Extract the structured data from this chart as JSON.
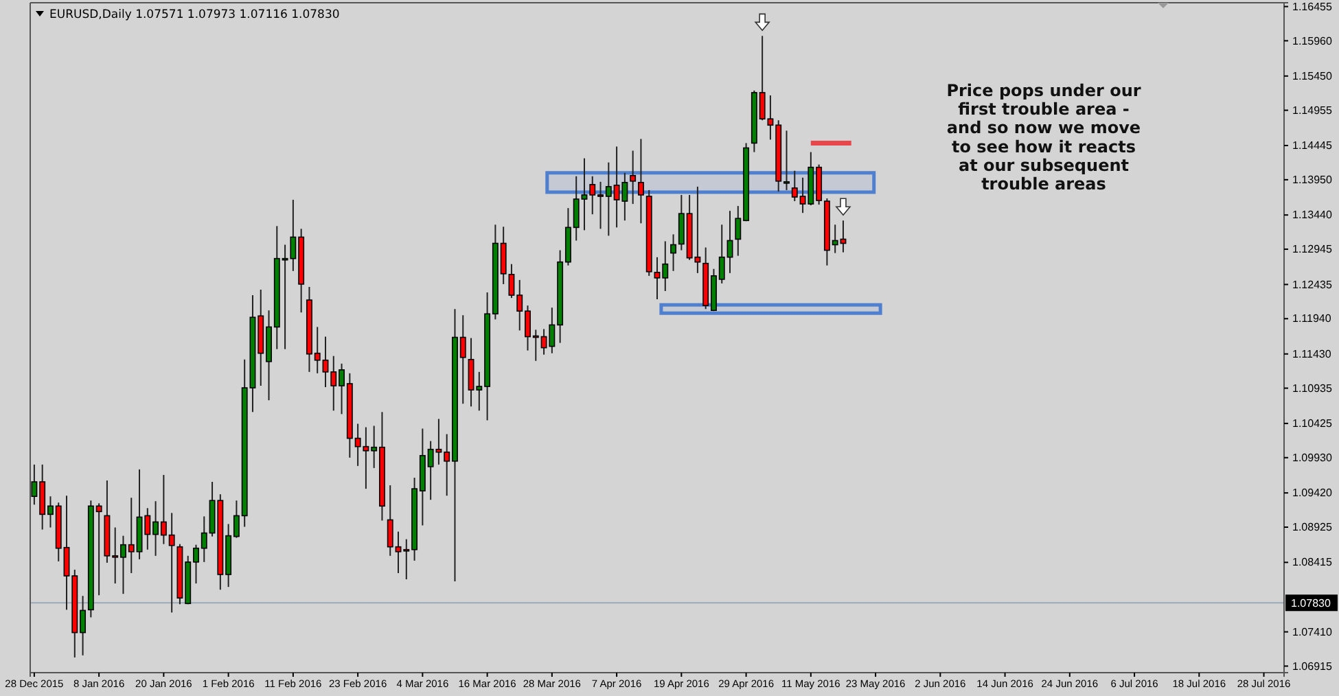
{
  "chart_data": {
    "type": "candlestick",
    "title": "EURUSD,Daily  1.07571 1.07973 1.07116 1.07830",
    "categories": [
      "28 Dec 2015",
      null,
      null,
      null,
      null,
      null,
      null,
      null,
      "8 Jan 2016",
      null,
      null,
      null,
      null,
      null,
      null,
      null,
      "20 Jan 2016",
      null,
      null,
      null,
      null,
      null,
      null,
      null,
      "1 Feb 2016",
      null,
      null,
      null,
      null,
      null,
      null,
      null,
      "11 Feb 2016",
      null,
      null,
      null,
      null,
      null,
      null,
      null,
      "23 Feb 2016",
      null,
      null,
      null,
      null,
      null,
      null,
      null,
      "4 Mar 2016",
      null,
      null,
      null,
      null,
      null,
      null,
      null,
      "16 Mar 2016",
      null,
      null,
      null,
      null,
      null,
      null,
      null,
      "28 Mar 2016",
      null,
      null,
      null,
      null,
      null,
      null,
      null,
      "7 Apr 2016",
      null,
      null,
      null,
      null,
      null,
      null,
      null,
      "19 Apr 2016",
      null,
      null,
      null,
      null,
      null,
      null,
      null,
      "29 Apr 2016",
      null,
      null,
      null,
      null,
      null,
      null,
      null,
      "11 May 2016",
      null,
      null,
      null,
      null,
      null,
      null,
      null,
      "23 May 2016",
      null,
      null,
      null,
      null,
      null,
      null,
      null,
      "2 Jun 2016",
      null,
      null,
      null,
      null,
      null,
      null,
      null,
      "14 Jun 2016",
      null,
      null,
      null,
      null,
      null,
      null,
      null,
      "24 Jun 2016",
      null,
      null,
      null,
      null,
      null,
      null,
      null,
      "6 Jul 2016",
      null,
      null,
      null,
      null,
      null,
      null,
      null,
      "18 Jul 2016",
      null,
      null,
      null,
      null,
      null,
      null,
      null,
      "28 Jul 2016",
      null,
      null
    ],
    "ohlc": [
      [
        1.0937,
        1.0983,
        1.0925,
        1.0958
      ],
      [
        1.0958,
        1.0983,
        1.0889,
        1.0911
      ],
      [
        1.0911,
        1.0937,
        1.0892,
        1.0923
      ],
      [
        1.0923,
        1.0928,
        1.0843,
        1.0862
      ],
      [
        1.0863,
        1.0938,
        1.0773,
        1.0822
      ],
      [
        1.0822,
        1.0831,
        1.0704,
        1.074
      ],
      [
        1.074,
        1.0793,
        1.0707,
        1.0772
      ],
      [
        1.0773,
        1.0931,
        1.0762,
        1.0923
      ],
      [
        1.0923,
        1.0927,
        1.0794,
        1.0915
      ],
      [
        1.0909,
        1.096,
        1.0841,
        1.0851
      ],
      [
        1.0851,
        1.0892,
        1.0811,
        1.085
      ],
      [
        1.0849,
        1.088,
        1.0796,
        1.0867
      ],
      [
        1.0867,
        1.0935,
        1.0826,
        1.0857
      ],
      [
        1.0857,
        1.0976,
        1.0846,
        1.0907
      ],
      [
        1.0909,
        1.092,
        1.086,
        1.0882
      ],
      [
        1.0882,
        1.093,
        1.0851,
        1.09
      ],
      [
        1.09,
        1.0968,
        1.0868,
        1.0881
      ],
      [
        1.0881,
        1.0913,
        1.0769,
        1.0866
      ],
      [
        1.0864,
        1.0868,
        1.0781,
        1.079
      ],
      [
        1.0782,
        1.0851,
        1.0781,
        1.0842
      ],
      [
        1.0842,
        1.0867,
        1.0811,
        1.0862
      ],
      [
        1.0862,
        1.0908,
        1.0842,
        1.0884
      ],
      [
        1.0884,
        1.0958,
        1.0879,
        1.0931
      ],
      [
        1.0931,
        1.094,
        1.0802,
        1.0824
      ],
      [
        1.0824,
        1.0897,
        1.0806,
        1.088
      ],
      [
        1.0879,
        1.0931,
        1.0877,
        1.0909
      ],
      [
        1.0909,
        1.1135,
        1.0893,
        1.1094
      ],
      [
        1.1094,
        1.1228,
        1.1059,
        1.1196
      ],
      [
        1.1198,
        1.1236,
        1.1097,
        1.1144
      ],
      [
        1.1132,
        1.1206,
        1.1076,
        1.1182
      ],
      [
        1.1182,
        1.1328,
        1.115,
        1.1281
      ],
      [
        1.1279,
        1.1301,
        1.115,
        1.1281
      ],
      [
        1.1281,
        1.1366,
        1.1263,
        1.1312
      ],
      [
        1.1312,
        1.1324,
        1.1203,
        1.1244
      ],
      [
        1.1221,
        1.124,
        1.1117,
        1.1143
      ],
      [
        1.1144,
        1.1182,
        1.1115,
        1.1134
      ],
      [
        1.1134,
        1.1168,
        1.1095,
        1.1117
      ],
      [
        1.1117,
        1.114,
        1.1061,
        1.1097
      ],
      [
        1.1097,
        1.1129,
        1.1056,
        1.112
      ],
      [
        1.11,
        1.1115,
        1.0993,
        1.1021
      ],
      [
        1.1021,
        1.1042,
        1.0981,
        1.1009
      ],
      [
        1.1009,
        1.1037,
        1.0948,
        1.1003
      ],
      [
        1.1003,
        1.1039,
        1.0978,
        1.1008
      ],
      [
        1.1008,
        1.1059,
        1.0902,
        1.0923
      ],
      [
        1.0903,
        1.0953,
        1.0851,
        1.0864
      ],
      [
        1.0864,
        1.0886,
        1.0826,
        1.0857
      ],
      [
        1.086,
        1.0875,
        1.0817,
        1.0858
      ],
      [
        1.086,
        1.0964,
        1.0844,
        1.0948
      ],
      [
        1.0945,
        1.1035,
        1.0895,
        1.0996
      ],
      [
        1.098,
        1.1017,
        1.0932,
        1.1005
      ],
      [
        1.1005,
        1.1049,
        1.0983,
        1.1001
      ],
      [
        1.1001,
        1.1027,
        1.0938,
        1.0988
      ],
      [
        1.0988,
        1.1208,
        1.0814,
        1.1167
      ],
      [
        1.1167,
        1.1199,
        1.1071,
        1.1138
      ],
      [
        1.1135,
        1.1166,
        1.1067,
        1.1091
      ],
      [
        1.1091,
        1.1117,
        1.1061,
        1.1096
      ],
      [
        1.1096,
        1.1232,
        1.1047,
        1.1201
      ],
      [
        1.1201,
        1.133,
        1.1193,
        1.1303
      ],
      [
        1.1303,
        1.1327,
        1.1244,
        1.1259
      ],
      [
        1.1258,
        1.1273,
        1.1224,
        1.1228
      ],
      [
        1.1228,
        1.125,
        1.1177,
        1.1205
      ],
      [
        1.1205,
        1.1213,
        1.1148,
        1.1168
      ],
      [
        1.1169,
        1.1178,
        1.1133,
        1.1168
      ],
      [
        1.1168,
        1.1179,
        1.1142,
        1.1152
      ],
      [
        1.1154,
        1.121,
        1.1144,
        1.1185
      ],
      [
        1.1185,
        1.1293,
        1.1159,
        1.1276
      ],
      [
        1.1276,
        1.1354,
        1.1271,
        1.1326
      ],
      [
        1.1326,
        1.14,
        1.1307,
        1.1367
      ],
      [
        1.1367,
        1.1426,
        1.1322,
        1.1373
      ],
      [
        1.1388,
        1.14,
        1.1345,
        1.1373
      ],
      [
        1.1373,
        1.1392,
        1.1324,
        1.1371
      ],
      [
        1.1371,
        1.142,
        1.1314,
        1.1385
      ],
      [
        1.1387,
        1.1443,
        1.1326,
        1.1366
      ],
      [
        1.1364,
        1.1405,
        1.1336,
        1.1391
      ],
      [
        1.1401,
        1.1437,
        1.136,
        1.1393
      ],
      [
        1.1391,
        1.1454,
        1.1332,
        1.1373
      ],
      [
        1.1371,
        1.138,
        1.1256,
        1.1262
      ],
      [
        1.1261,
        1.1283,
        1.1222,
        1.1253
      ],
      [
        1.1253,
        1.1306,
        1.1234,
        1.1273
      ],
      [
        1.1289,
        1.1316,
        1.1263,
        1.1301
      ],
      [
        1.1302,
        1.1373,
        1.1293,
        1.1346
      ],
      [
        1.1346,
        1.1373,
        1.1279,
        1.1282
      ],
      [
        1.1283,
        1.1385,
        1.126,
        1.1276
      ],
      [
        1.1274,
        1.1297,
        1.1208,
        1.1213
      ],
      [
        1.1206,
        1.1266,
        1.1205,
        1.1256
      ],
      [
        1.1251,
        1.133,
        1.1245,
        1.1283
      ],
      [
        1.1283,
        1.135,
        1.126,
        1.1307
      ],
      [
        1.1309,
        1.1357,
        1.1285,
        1.1339
      ],
      [
        1.1336,
        1.1448,
        1.1335,
        1.1441
      ],
      [
        1.1448,
        1.1524,
        1.1435,
        1.1521
      ],
      [
        1.1521,
        1.1603,
        1.1481,
        1.1483
      ],
      [
        1.1483,
        1.1517,
        1.1453,
        1.1474
      ],
      [
        1.1474,
        1.1481,
        1.1378,
        1.1393
      ],
      [
        1.1392,
        1.1466,
        1.138,
        1.1392
      ],
      [
        1.1383,
        1.1408,
        1.1364,
        1.137
      ],
      [
        1.1371,
        1.1398,
        1.1347,
        1.136
      ],
      [
        1.136,
        1.1435,
        1.1358,
        1.1413
      ],
      [
        1.1413,
        1.1417,
        1.1359,
        1.1365
      ],
      [
        1.1364,
        1.1368,
        1.1271,
        1.1293
      ],
      [
        1.1301,
        1.133,
        1.1289,
        1.1307
      ],
      [
        1.1309,
        1.1336,
        1.129,
        1.1303
      ],
      null,
      null,
      null,
      null,
      null,
      null,
      null,
      null,
      null,
      null,
      null,
      null,
      null,
      null,
      null,
      null,
      null,
      null,
      null,
      null,
      null,
      null,
      null,
      null,
      null,
      null,
      null,
      null,
      null,
      null,
      null,
      null,
      null,
      null,
      null,
      null,
      null,
      null,
      null,
      null,
      null,
      null,
      null,
      null,
      null,
      null,
      null,
      null,
      null,
      null,
      null,
      null,
      null,
      null
    ],
    "ylim": [
      1.0682,
      1.1651
    ],
    "yticks": [
      1.16455,
      {
        "value": 1.1596,
        "label": "1.15960"
      },
      {
        "value": 1.1545,
        "label": "1.15450"
      },
      1.14955,
      1.14445,
      {
        "value": 1.1395,
        "label": "1.13950"
      },
      {
        "value": 1.1344,
        "label": "1.13440"
      },
      1.12945,
      1.12435,
      {
        "value": 1.1194,
        "label": "1.11940"
      },
      {
        "value": 1.1143,
        "label": "1.11430"
      },
      1.10935,
      1.10425,
      {
        "value": 1.0993,
        "label": "1.09930"
      },
      {
        "value": 1.0942,
        "label": "1.09420"
      },
      1.08925,
      1.08415,
      {
        "value": 1.0741,
        "label": "1.07410"
      },
      1.06915
    ],
    "ref_lines": [
      {
        "axis": "y",
        "value": 1.0783,
        "label": "1.07830",
        "color": "#9aaab8"
      }
    ],
    "series": [
      {
        "type": "line",
        "color": "#e8474a",
        "values": [
          null,
          null,
          null,
          null,
          null,
          null,
          null,
          null,
          null,
          null,
          null,
          null,
          null,
          null,
          null,
          null,
          null,
          null,
          null,
          null,
          null,
          null,
          null,
          null,
          null,
          null,
          null,
          null,
          null,
          null,
          null,
          null,
          null,
          null,
          null,
          null,
          null,
          null,
          null,
          null,
          null,
          null,
          null,
          null,
          null,
          null,
          null,
          null,
          null,
          null,
          null,
          null,
          null,
          null,
          null,
          null,
          null,
          null,
          null,
          null,
          null,
          null,
          null,
          null,
          null,
          null,
          null,
          null,
          null,
          null,
          null,
          null,
          null,
          null,
          null,
          null,
          null,
          null,
          null,
          null,
          null,
          null,
          null,
          null,
          null,
          null,
          null,
          null,
          null,
          null,
          null,
          null,
          null,
          null,
          null,
          null,
          1.1448,
          1.1448,
          1.1448,
          1.1448,
          1.1448,
          1.1448,
          null,
          null,
          null,
          null,
          null,
          null,
          null,
          null,
          null,
          null,
          null,
          null,
          null,
          null,
          null,
          null,
          null,
          null,
          null,
          null,
          null,
          null,
          null,
          null,
          null,
          null,
          null,
          null,
          null,
          null,
          null,
          null,
          null,
          null,
          null,
          null,
          null,
          null,
          null,
          null,
          null,
          null,
          null,
          null,
          null,
          null,
          null,
          null,
          null,
          null,
          null,
          null,
          null
        ]
      }
    ],
    "bands": [
      {
        "axis": "y",
        "from": 1.1377,
        "to": 1.1405,
        "label": null,
        "color": "#4f7fcf"
      },
      {
        "axis": "y",
        "from": 1.1202,
        "to": 1.1214,
        "label": null,
        "color": "#4f7fcf"
      }
    ],
    "annotations": [
      "Price pops under our\nfirst trouble area -\nand so now we move\nto see how it reacts\nat our subsequent\ntrouble areas"
    ]
  }
}
